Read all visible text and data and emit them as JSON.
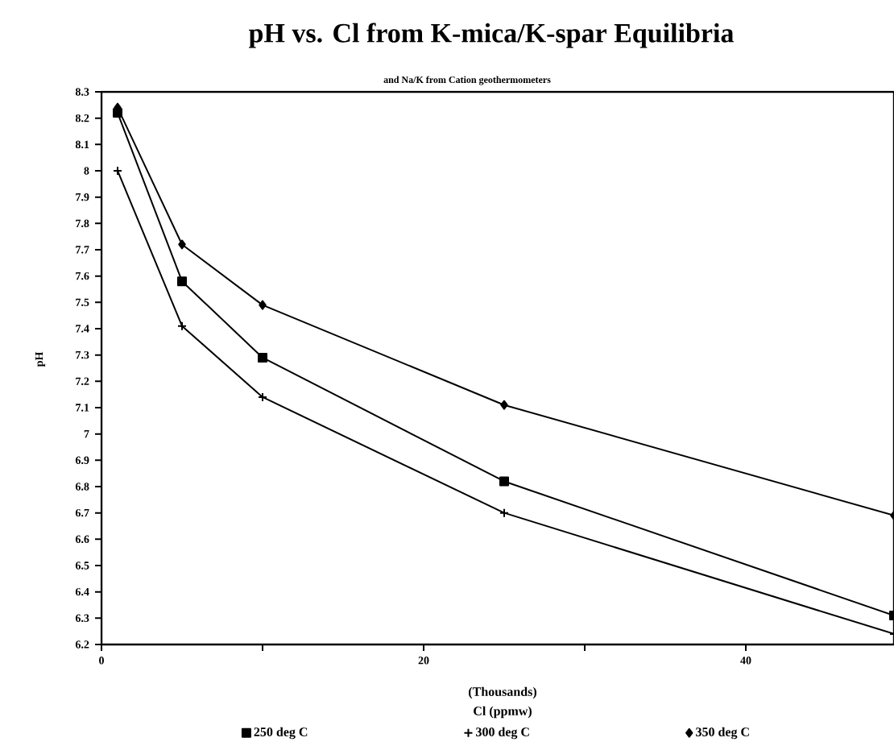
{
  "chart_data": {
    "type": "line",
    "title": "pH vs. Cl from K-mica/K-spar Equilibria",
    "subtitle": "and Na/K from Cation geothermometers",
    "xlabel": "Cl (ppmw)",
    "ylabel": "pH",
    "annotations": [
      "(Thousands)"
    ],
    "x": [
      1,
      5,
      10,
      25,
      49.2
    ],
    "series": [
      {
        "name": "250 deg C",
        "color": "#000000",
        "marker": "square",
        "values": [
          8.22,
          7.58,
          7.29,
          6.82,
          6.31
        ]
      },
      {
        "name": "300 deg C",
        "color": "#000000",
        "marker": "cross",
        "values": [
          8.0,
          7.41,
          7.14,
          6.7,
          6.24
        ]
      },
      {
        "name": "350 deg C",
        "color": "#000000",
        "marker": "diamond",
        "values": [
          8.24,
          7.72,
          7.49,
          7.11,
          6.69
        ]
      }
    ],
    "xlim": [
      0,
      49.2
    ],
    "ylim": [
      6.2,
      8.3
    ],
    "xticks": [
      0,
      {
        "value": 10,
        "label": null
      },
      20,
      {
        "value": 30,
        "label": null
      },
      40
    ],
    "yticks": [
      6.2,
      6.3,
      6.4,
      6.5,
      6.6,
      6.7,
      6.8,
      6.9,
      7,
      7.1,
      7.2,
      7.3,
      7.4,
      7.5,
      7.6,
      7.7,
      7.8,
      7.9,
      8,
      8.1,
      8.2,
      8.3
    ],
    "grid": false,
    "legend": "bottom",
    "line_style": "solid"
  }
}
